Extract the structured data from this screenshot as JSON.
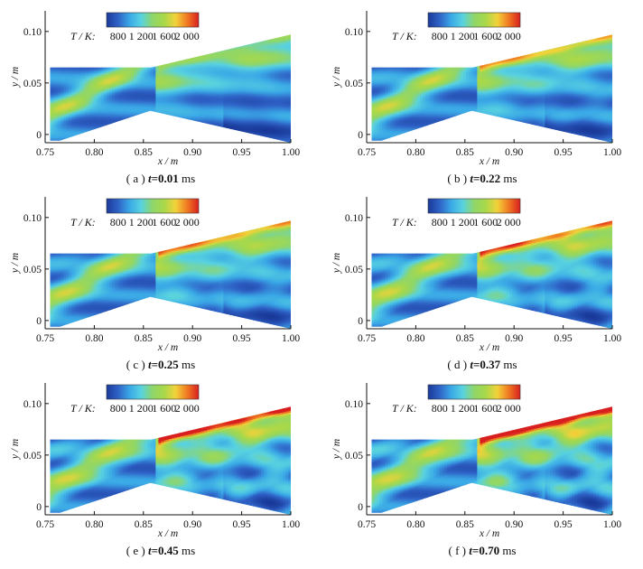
{
  "chart_data": [
    {
      "type": "heatmap",
      "panel": "a",
      "caption": {
        "prefix": "( a )",
        "variable": "t",
        "equals": "=",
        "value": "0.01",
        "unit": "ms"
      },
      "xlabel": "x / m",
      "ylabel": "y / m",
      "xlim": [
        0.75,
        1.0
      ],
      "ylim": [
        -0.008,
        0.12
      ],
      "x_ticks": [
        "0.75",
        "0.80",
        "0.85",
        "0.90",
        "0.95",
        "1.00"
      ],
      "y_ticks": [
        "0",
        "0.05",
        "0.10"
      ],
      "colorbar": {
        "title": "T / K:",
        "ticks": [
          "800",
          "1 200",
          "1 600",
          "2 000"
        ],
        "range": [
          600,
          2200
        ]
      },
      "hot_layer_strength": 0.2,
      "pattern_complexity": 0.2
    },
    {
      "type": "heatmap",
      "panel": "b",
      "caption": {
        "prefix": "( b )",
        "variable": "t",
        "equals": "=",
        "value": "0.22",
        "unit": "ms"
      },
      "xlabel": "x / m",
      "ylabel": "y / m",
      "xlim": [
        0.75,
        1.0
      ],
      "ylim": [
        -0.008,
        0.12
      ],
      "x_ticks": [
        "0.75",
        "0.80",
        "0.85",
        "0.90",
        "0.95",
        "1.00"
      ],
      "y_ticks": [
        "0",
        "0.05",
        "0.10"
      ],
      "colorbar": {
        "title": "T / K:",
        "ticks": [
          "800",
          "1 200",
          "1 600",
          "2 000"
        ],
        "range": [
          600,
          2200
        ]
      },
      "hot_layer_strength": 0.55,
      "pattern_complexity": 0.35
    },
    {
      "type": "heatmap",
      "panel": "c",
      "caption": {
        "prefix": "( c )",
        "variable": "t",
        "equals": "=",
        "value": "0.25",
        "unit": "ms"
      },
      "xlabel": "x / m",
      "ylabel": "y / m",
      "xlim": [
        0.75,
        1.0
      ],
      "ylim": [
        -0.008,
        0.12
      ],
      "x_ticks": [
        "0.75",
        "0.80",
        "0.85",
        "0.90",
        "0.95",
        "1.00"
      ],
      "y_ticks": [
        "0",
        "0.05",
        "0.10"
      ],
      "colorbar": {
        "title": "T / K:",
        "ticks": [
          "800",
          "1 200",
          "1 600",
          "2 000"
        ],
        "range": [
          600,
          2200
        ]
      },
      "hot_layer_strength": 0.6,
      "pattern_complexity": 0.45
    },
    {
      "type": "heatmap",
      "panel": "d",
      "caption": {
        "prefix": "( d )",
        "variable": "t",
        "equals": "=",
        "value": "0.37",
        "unit": "ms"
      },
      "xlabel": "x / m",
      "ylabel": "y / m",
      "xlim": [
        0.75,
        1.0
      ],
      "ylim": [
        -0.008,
        0.12
      ],
      "x_ticks": [
        "0.75",
        "0.80",
        "0.85",
        "0.90",
        "0.95",
        "1.00"
      ],
      "y_ticks": [
        "0",
        "0.05",
        "0.10"
      ],
      "colorbar": {
        "title": "T / K:",
        "ticks": [
          "800",
          "1 200",
          "1 600",
          "2 000"
        ],
        "range": [
          600,
          2200
        ]
      },
      "hot_layer_strength": 0.65,
      "pattern_complexity": 0.7
    },
    {
      "type": "heatmap",
      "panel": "e",
      "caption": {
        "prefix": "( e )",
        "variable": "t",
        "equals": "=",
        "value": "0.45",
        "unit": "ms"
      },
      "xlabel": "x / m",
      "ylabel": "y / m",
      "xlim": [
        0.75,
        1.0
      ],
      "ylim": [
        -0.008,
        0.12
      ],
      "x_ticks": [
        "0.75",
        "0.80",
        "0.85",
        "0.90",
        "0.95",
        "1.00"
      ],
      "y_ticks": [
        "0",
        "0.05",
        "0.10"
      ],
      "colorbar": {
        "title": "T / K:",
        "ticks": [
          "800",
          "1 200",
          "1 600",
          "2 000"
        ],
        "range": [
          600,
          2200
        ]
      },
      "hot_layer_strength": 0.85,
      "pattern_complexity": 0.85
    },
    {
      "type": "heatmap",
      "panel": "f",
      "caption": {
        "prefix": "( f )",
        "variable": "t",
        "equals": "=",
        "value": "0.70",
        "unit": "ms"
      },
      "xlabel": "x / m",
      "ylabel": "y / m",
      "xlim": [
        0.75,
        1.0
      ],
      "ylim": [
        -0.008,
        0.12
      ],
      "x_ticks": [
        "0.75",
        "0.80",
        "0.85",
        "0.90",
        "0.95",
        "1.00"
      ],
      "y_ticks": [
        "0",
        "0.05",
        "0.10"
      ],
      "colorbar": {
        "title": "T / K:",
        "ticks": [
          "800",
          "1 200",
          "1 600",
          "2 000"
        ],
        "range": [
          600,
          2200
        ]
      },
      "hot_layer_strength": 1.0,
      "pattern_complexity": 1.0
    }
  ],
  "colormap": [
    "#1a3a9a",
    "#2f62c6",
    "#3aa8e6",
    "#58d2e0",
    "#8fd66a",
    "#a8d84a",
    "#f2d23a",
    "#f07a22",
    "#d81f1f"
  ],
  "boundary_points_m": {
    "duct_top": [
      [
        0.755,
        0.065
      ],
      [
        0.858,
        0.065
      ],
      [
        1.0,
        0.097
      ]
    ],
    "bottom_wall": [
      [
        0.765,
        -0.006
      ],
      [
        0.857,
        0.023
      ],
      [
        1.0,
        -0.008
      ]
    ],
    "duct_inlet_floor_y": -0.006
  }
}
